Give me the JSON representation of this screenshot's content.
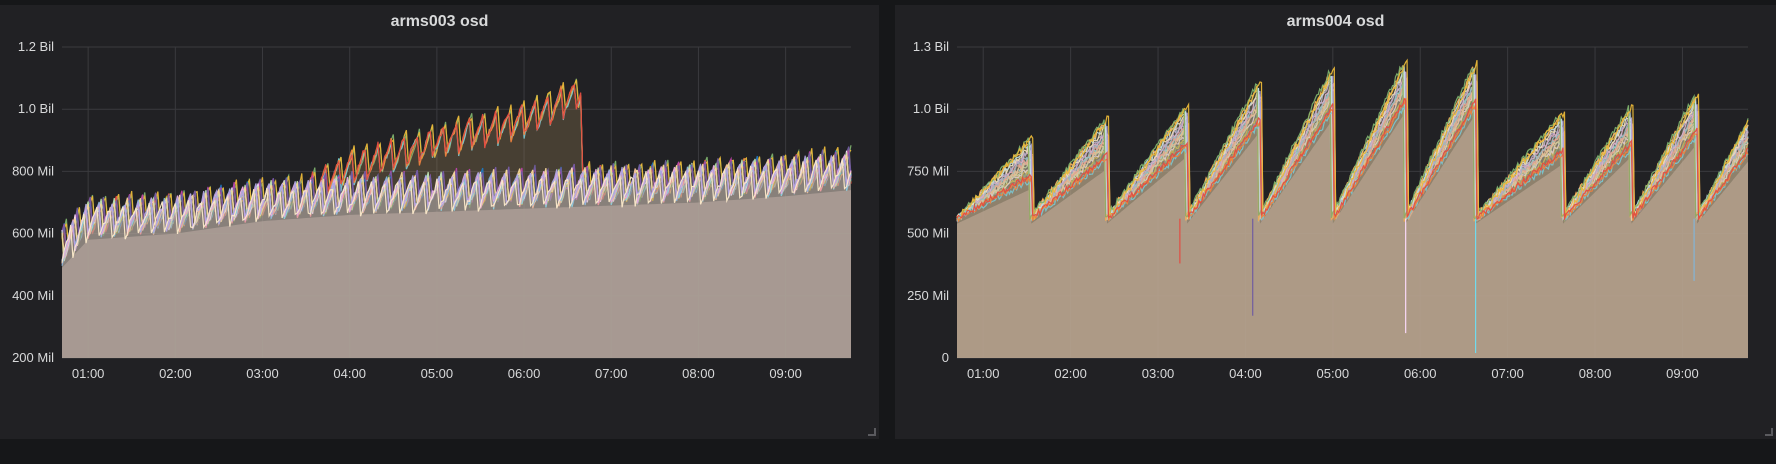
{
  "colors": {
    "background": "#161719",
    "panel": "#212124",
    "grid": "#3a3a3e",
    "fill": "#9a8b86",
    "palette": [
      "#7eb26d",
      "#eab839",
      "#6ed0e0",
      "#ef843c",
      "#e24d42",
      "#1f78c1",
      "#ba43a9",
      "#705da0",
      "#508642",
      "#cca300",
      "#f9d9f9",
      "#b7dbab",
      "#f4d598",
      "#70dbed",
      "#f9ba8f",
      "#f29191",
      "#82b5d8",
      "#e5a8e2",
      "#aea2e0",
      "#fceaca",
      "#badff4",
      "#ffb357"
    ]
  },
  "chart_data": [
    {
      "type": "area",
      "title": "arms003 osd",
      "x_ticks": [
        "01:00",
        "02:00",
        "03:00",
        "04:00",
        "05:00",
        "06:00",
        "07:00",
        "08:00",
        "09:00"
      ],
      "y_ticks": [
        "200 Mil",
        "400 Mil",
        "600 Mil",
        "800 Mil",
        "1.0 Bil",
        "1.2 Bil"
      ],
      "x_range": [
        "00:42",
        "09:45"
      ],
      "ylim": [
        200000000,
        1200000000
      ],
      "series_count": 20,
      "typical_envelope": {
        "times": [
          "00:42",
          "01:00",
          "02:00",
          "03:00",
          "04:00",
          "05:00",
          "06:00",
          "07:00",
          "08:00",
          "09:00",
          "09:45"
        ],
        "values": [
          530000000,
          620000000,
          640000000,
          680000000,
          700000000,
          710000000,
          720000000,
          730000000,
          740000000,
          760000000,
          780000000
        ]
      },
      "upper_group_envelope": {
        "times": [
          "03:30",
          "04:00",
          "05:00",
          "06:00",
          "06:40",
          "06:50"
        ],
        "values": [
          720000000,
          800000000,
          880000000,
          950000000,
          1040000000,
          700000000
        ]
      },
      "sawtooth_period_minutes": 9,
      "sawtooth_drop": 110000000,
      "grid": true,
      "legend": "none"
    },
    {
      "type": "area",
      "title": "arms004 osd",
      "x_ticks": [
        "01:00",
        "02:00",
        "03:00",
        "04:00",
        "05:00",
        "06:00",
        "07:00",
        "08:00",
        "09:00"
      ],
      "y_ticks": [
        "0",
        "250 Mil",
        "500 Mil",
        "750 Mil",
        "1.0 Bil",
        "1.3 Bil"
      ],
      "x_range": [
        "00:42",
        "09:45"
      ],
      "ylim": [
        0,
        1250000000
      ],
      "series_count": 20,
      "cycle_resets": [
        "01:33",
        "02:25",
        "03:20",
        "04:10",
        "05:00",
        "05:50",
        "06:38",
        "07:38",
        "08:25",
        "09:10"
      ],
      "cycle_peaks": [
        820000000,
        900000000,
        950000000,
        1050000000,
        1100000000,
        1130000000,
        1120000000,
        920000000,
        950000000,
        1000000000
      ],
      "cycle_trough": 560000000,
      "outlier_drops": [
        {
          "time": "03:15",
          "value": 380000000
        },
        {
          "time": "04:05",
          "value": 170000000
        },
        {
          "time": "05:50",
          "value": 100000000
        },
        {
          "time": "06:38",
          "value": 20000000
        },
        {
          "time": "09:08",
          "value": 310000000
        }
      ],
      "grid": true,
      "legend": "none"
    }
  ]
}
